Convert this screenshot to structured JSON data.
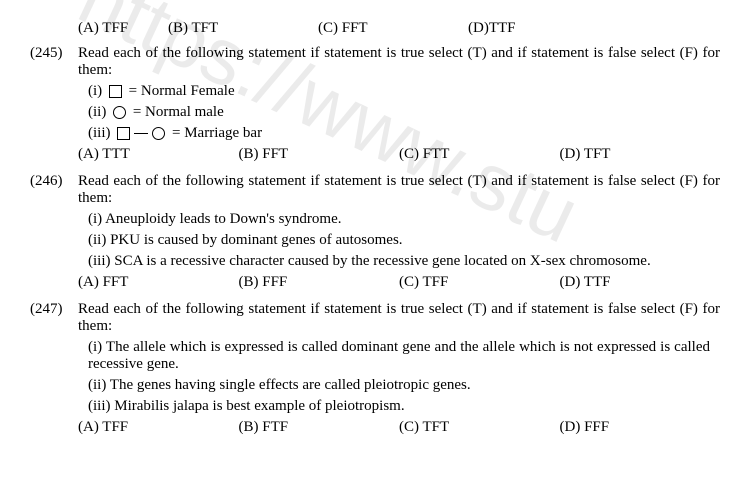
{
  "topOptions": {
    "a": "(A) TFF",
    "b": "(B) TFT",
    "c": "(C) FFT",
    "d": "(D)TTF"
  },
  "q245": {
    "num": "(245)",
    "text": "Read each of the following statement if statement is true select (T) and if statement is false select (F) for them:",
    "s1a": "(i)",
    "s1b": "= Normal Female",
    "s2a": "(ii)",
    "s2b": "= Normal male",
    "s3a": "(iii)",
    "s3b": "= Marriage bar",
    "optA": "(A) TTT",
    "optB": "(B) FFT",
    "optC": "(C) FTT",
    "optD": "(D) TFT"
  },
  "q246": {
    "num": "(246)",
    "text": "Read each of the following statement if statement is true select (T) and if statement is false select (F) for them:",
    "s1": "(i) Aneuploidy leads to Down's syndrome.",
    "s2": "(ii) PKU is caused by dominant genes of autosomes.",
    "s3": "(iii) SCA is a recessive character caused by the recessive gene located on X-sex chromosome.",
    "optA": "(A) FFT",
    "optB": "(B) FFF",
    "optC": "(C) TFF",
    "optD": "(D) TTF"
  },
  "q247": {
    "num": "(247)",
    "text": "Read each of the following statement if statement is true select (T) and if statement is false select (F) for them:",
    "s1": "(i) The allele which is expressed is called dominant gene and the allele which is not expressed is called recessive gene.",
    "s2": "(ii) The genes having single effects are called pleiotropic genes.",
    "s3": "(iii) Mirabilis jalapa is best example of pleiotropism.",
    "optA": "(A) TFF",
    "optB": "(B) FTF",
    "optC": "(C) TFT",
    "optD": "(D) FFF"
  },
  "watermark": "https://www.stu"
}
